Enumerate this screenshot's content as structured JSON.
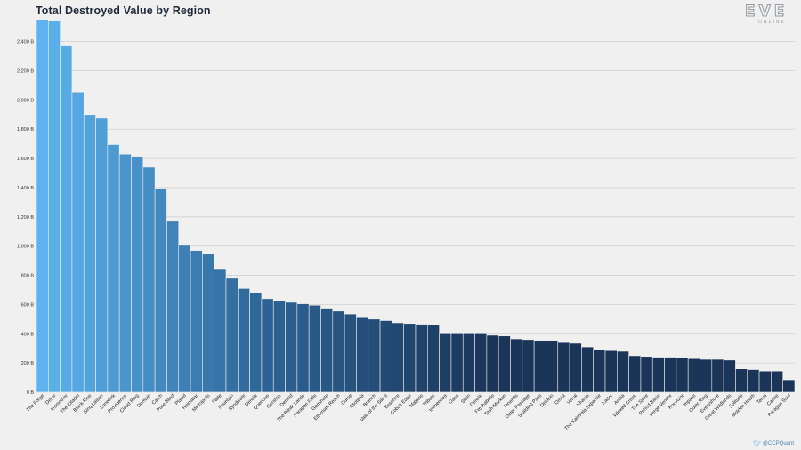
{
  "title": "Total Destroyed Value by Region",
  "logo": {
    "word": "EVE",
    "sub": "ONLINE"
  },
  "credit": {
    "icon": "twitter-bird-icon",
    "handle": "@CCPQuant"
  },
  "colors": {
    "start": "#5cb3ef",
    "mid": "#2d6394",
    "end": "#1b3558",
    "background": "#f0f0f0"
  },
  "chart_data": {
    "type": "bar",
    "title": "Total Destroyed Value by Region",
    "xlabel": "",
    "ylabel": "",
    "ylim": [
      0,
      2550
    ],
    "yticks": [
      0,
      200,
      400,
      600,
      800,
      1000,
      1200,
      1400,
      1600,
      1800,
      2000,
      2200,
      2400
    ],
    "ytick_labels": [
      "0 B",
      "200 B",
      "400 B",
      "600 B",
      "800 B",
      "1,000 B",
      "1,200 B",
      "1,400 B",
      "1,600 B",
      "1,800 B",
      "2,000 B",
      "2,200 B",
      "2,400 B"
    ],
    "grid": true,
    "categories": [
      "The Forge",
      "Delve",
      "Insmother",
      "The Citadel",
      "Black Rise",
      "Sinq Laison",
      "Lonetrek",
      "Providence",
      "Cloud Ring",
      "Domain",
      "Catch",
      "Pure Blind",
      "Placid",
      "Heimatar",
      "Metropolis",
      "Fade",
      "Fountain",
      "Syndicate",
      "Derelik",
      "Querious",
      "Genesis",
      "Detorid",
      "The Bleak Lands",
      "Paragon Falls",
      "Geminate",
      "Etherium Reach",
      "Curse",
      "Esoteria",
      "Branch",
      "Vale of the Silent",
      "Essence",
      "Cobalt Edge",
      "Malpais",
      "Tribute",
      "Immensea",
      "Oasa",
      "Stain",
      "Derelik",
      "Feythabolis",
      "Tash-Murkon",
      "Tenerifis",
      "Outer Passage",
      "Scalding Pass",
      "Deklein",
      "Omist",
      "Venal",
      "Khanid",
      "The Kalevala Expanse",
      "Kador",
      "Aridia",
      "Wicked Creek",
      "The Spire",
      "Period Basis",
      "Verge Vendor",
      "Kor-Azor",
      "Impass",
      "Outer Ring",
      "Everyshore",
      "Great Wildlands",
      "Solitude",
      "Molden Heath",
      "Tenal",
      "Cache",
      "Paragon Soul"
    ],
    "values": [
      2550,
      2540,
      2370,
      2050,
      1900,
      1875,
      1695,
      1630,
      1615,
      1540,
      1390,
      1170,
      1005,
      970,
      945,
      840,
      780,
      710,
      680,
      640,
      625,
      615,
      605,
      595,
      575,
      555,
      535,
      510,
      500,
      490,
      475,
      470,
      465,
      460,
      400,
      400,
      400,
      400,
      390,
      385,
      365,
      360,
      355,
      355,
      340,
      335,
      310,
      290,
      285,
      280,
      250,
      245,
      240,
      240,
      235,
      230,
      225,
      225,
      220,
      160,
      155,
      145,
      145,
      85
    ]
  }
}
